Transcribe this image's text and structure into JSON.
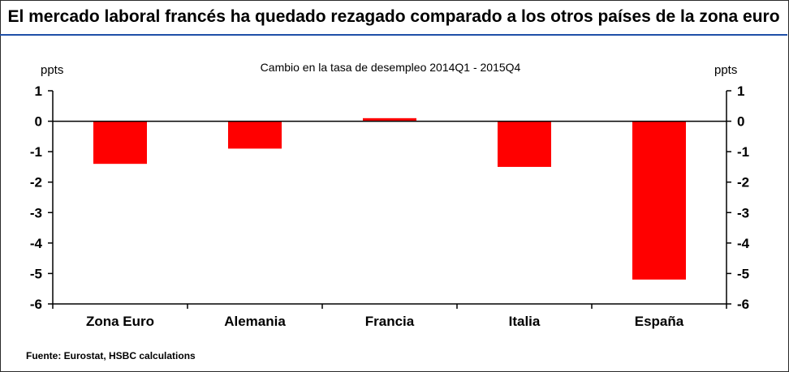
{
  "header": {
    "title": "El mercado laboral francés ha quedado rezagado comparado a los otros países de la zona euro"
  },
  "footer": {
    "source": "Fuente: Eurostat, HSBC calculations"
  },
  "colors": {
    "bar": "#ff0000",
    "title_rule": "#1f4fa8"
  },
  "chart_data": {
    "type": "bar",
    "title": "Cambio en la tasa de desempleo 2014Q1 - 2015Q4",
    "ylabel_left": "ppts",
    "ylabel_right": "ppts",
    "categories": [
      "Zona Euro",
      "Alemania",
      "Francia",
      "Italia",
      "España"
    ],
    "values": [
      -1.4,
      -0.9,
      0.1,
      -1.5,
      -5.2
    ],
    "ylim": [
      -6,
      1
    ],
    "yticks": [
      "1",
      "0",
      "-1",
      "-2",
      "-3",
      "-4",
      "-5",
      "-6"
    ],
    "grid": false,
    "legend": "none"
  }
}
